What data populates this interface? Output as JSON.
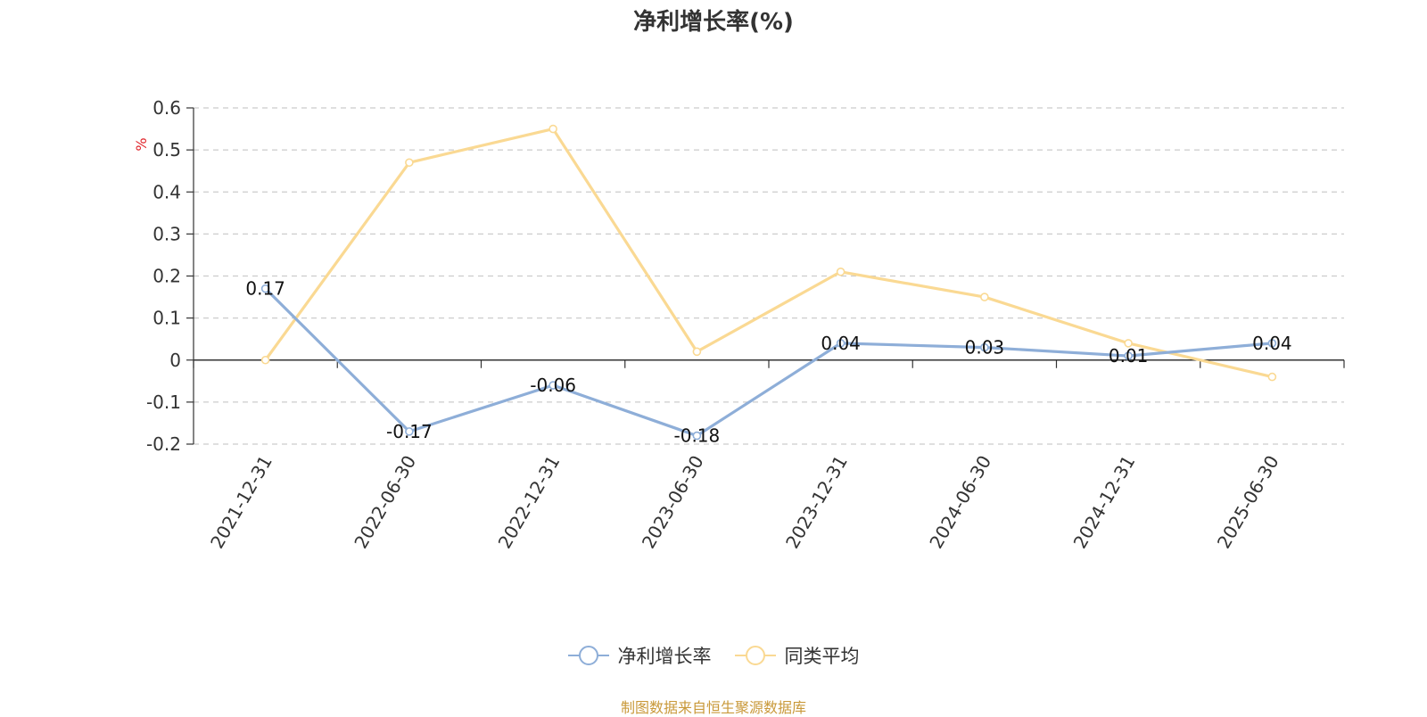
{
  "chart_data": {
    "type": "line",
    "title": "净利增长率(%)",
    "ylabel": "%",
    "x": [
      "2021-12-31",
      "2022-06-30",
      "2022-12-31",
      "2023-06-30",
      "2023-12-31",
      "2024-06-30",
      "2024-12-31",
      "2025-06-30"
    ],
    "ylim": [
      -0.2,
      0.6
    ],
    "yticks": [
      -0.2,
      -0.1,
      0,
      0.1,
      0.2,
      0.3,
      0.4,
      0.5,
      0.6
    ],
    "grid": true,
    "legend_position": "bottom",
    "series": [
      {
        "name": "净利增长率",
        "color": "#8eaed8",
        "values": [
          0.17,
          -0.17,
          -0.06,
          -0.18,
          0.04,
          0.03,
          0.01,
          0.04
        ],
        "labels": [
          "0.17",
          "-0.17",
          "-0.06",
          "-0.18",
          "0.04",
          "0.03",
          "0.01",
          "0.04"
        ]
      },
      {
        "name": "同类平均",
        "color": "#fad993",
        "values": [
          0.0,
          0.47,
          0.55,
          0.02,
          0.21,
          0.15,
          0.04,
          -0.04
        ]
      }
    ]
  },
  "footer": {
    "source": "制图数据来自恒生聚源数据库"
  }
}
